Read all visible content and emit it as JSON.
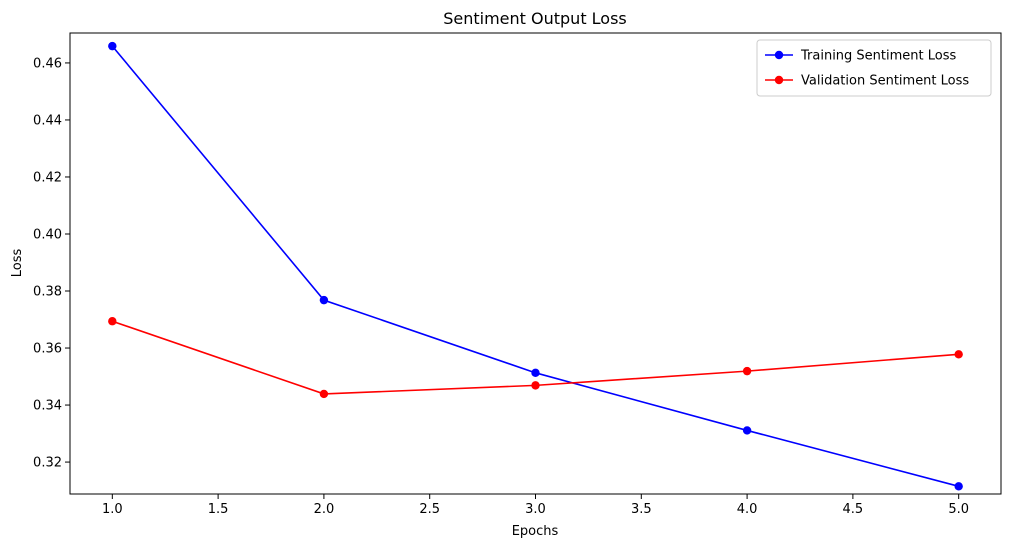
{
  "chart_data": {
    "type": "line",
    "title": "Sentiment Output Loss",
    "xlabel": "Epochs",
    "ylabel": "Loss",
    "x": [
      1,
      2,
      3,
      4,
      5
    ],
    "xlim": [
      0.8,
      5.2
    ],
    "ylim": [
      0.3088,
      0.4705
    ],
    "xticks": [
      "1.0",
      "1.5",
      "2.0",
      "2.5",
      "3.0",
      "3.5",
      "4.0",
      "4.5",
      "5.0"
    ],
    "yticks": [
      "0.32",
      "0.34",
      "0.36",
      "0.38",
      "0.40",
      "0.42",
      "0.44",
      "0.46"
    ],
    "grid": false,
    "legend_position": "top-right",
    "series": [
      {
        "name": "Training Sentiment Loss",
        "color": "#0000ff",
        "marker": "circle",
        "values": [
          0.4659,
          0.3768,
          0.3513,
          0.3311,
          0.3115
        ]
      },
      {
        "name": "Validation Sentiment Loss",
        "color": "#ff0000",
        "marker": "circle",
        "values": [
          0.3694,
          0.3439,
          0.3469,
          0.3519,
          0.3578
        ]
      }
    ]
  }
}
